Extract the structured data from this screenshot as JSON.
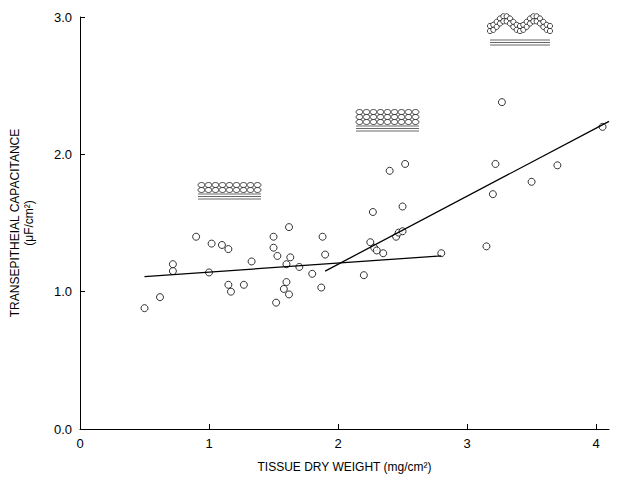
{
  "chart_data": {
    "type": "scatter",
    "x_label": "TISSUE DRY WEIGHT (mg/cm²)",
    "y_label": "TRANSEPITHEIAL CAPACITANCE\n(μF/cm²)",
    "xlim": [
      0,
      4.1
    ],
    "xticks": [
      0,
      1,
      2,
      3,
      4
    ],
    "ylim": [
      0,
      3
    ],
    "yticks": [
      {
        "value": 0,
        "label": "0.0"
      },
      {
        "value": 1,
        "label": "1.0"
      },
      {
        "value": 2,
        "label": "2.0"
      },
      {
        "value": 3,
        "label": "3.0"
      }
    ],
    "grid": false,
    "series": [
      {
        "type": "scatter",
        "marker": "circle",
        "color": "#000000",
        "x": [
          0.5,
          0.62,
          0.72,
          0.72,
          0.9,
          1.0,
          1.02,
          1.1,
          1.15,
          1.15,
          1.17,
          1.27,
          1.33,
          1.5,
          1.5,
          1.52,
          1.53,
          1.58,
          1.6,
          1.62,
          1.62,
          1.6,
          1.63,
          1.7,
          1.8,
          1.87,
          1.88,
          1.9,
          2.2,
          2.25,
          2.27,
          2.28,
          2.3,
          2.35,
          2.4,
          2.45,
          2.47,
          2.5,
          2.52,
          2.5,
          2.8,
          3.15,
          3.2,
          3.22,
          3.27,
          3.5,
          3.7,
          4.05
        ],
        "values": [
          0.88,
          0.96,
          1.15,
          1.2,
          1.4,
          1.14,
          1.35,
          1.34,
          1.31,
          1.05,
          1.0,
          1.05,
          1.22,
          1.4,
          1.32,
          0.92,
          1.26,
          1.02,
          1.2,
          0.98,
          1.47,
          1.07,
          1.25,
          1.18,
          1.13,
          1.03,
          1.4,
          1.27,
          1.12,
          1.36,
          1.58,
          1.32,
          1.3,
          1.28,
          1.88,
          1.4,
          1.43,
          1.62,
          1.93,
          1.44,
          1.28,
          1.33,
          1.71,
          1.93,
          2.38,
          1.8,
          1.92,
          2.2
        ]
      },
      {
        "type": "line",
        "line_style": "solid",
        "color": "#000000",
        "x": [
          0.5,
          2.8
        ],
        "values": [
          1.11,
          1.26
        ]
      },
      {
        "type": "line",
        "line_style": "solid",
        "color": "#000000",
        "x": [
          1.9,
          4.1
        ],
        "values": [
          1.15,
          2.24
        ]
      }
    ]
  }
}
